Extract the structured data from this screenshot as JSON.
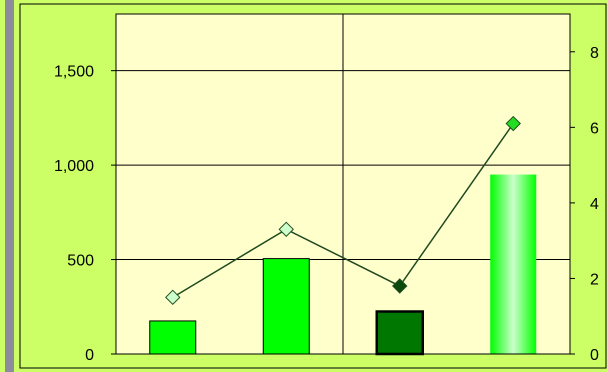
{
  "colors": {
    "outer_bg": "#ccff66",
    "plot_bg": "#ffffcc",
    "frame": "#000000",
    "divider_bar": "#8c8c9c",
    "line": "#1f4a1f",
    "bar_bright": "#00ff00",
    "bar_dark": "#007700",
    "gradient_light": "#ccffcc",
    "marker_light": "#ccffcc",
    "marker_dark": "#0b4a0b",
    "marker_bright": "#22dd22"
  },
  "chart_data": {
    "type": "bar",
    "title": "",
    "xlabel": "",
    "ylabel": "",
    "ylim": [
      0,
      1800
    ],
    "y2lim": [
      0,
      9
    ],
    "y_ticks": [
      "0",
      "500",
      "1,000",
      "1,500"
    ],
    "y_tick_values": [
      0,
      500,
      1000,
      1500
    ],
    "y2_ticks": [
      "0",
      "2",
      "4",
      "6",
      "8"
    ],
    "y2_tick_values": [
      0,
      2,
      4,
      6,
      8
    ],
    "grid": true,
    "categories": [
      "",
      "",
      "",
      ""
    ],
    "series": [
      {
        "type": "bar",
        "axis": "left",
        "values": [
          175,
          505,
          225,
          950
        ],
        "styles": [
          "bright",
          "bright",
          "dark",
          "gradient"
        ]
      },
      {
        "type": "line",
        "axis": "right",
        "values": [
          1.5,
          3.3,
          1.8,
          6.1
        ],
        "marker_styles": [
          "light",
          "light",
          "dark",
          "bright"
        ]
      }
    ]
  }
}
